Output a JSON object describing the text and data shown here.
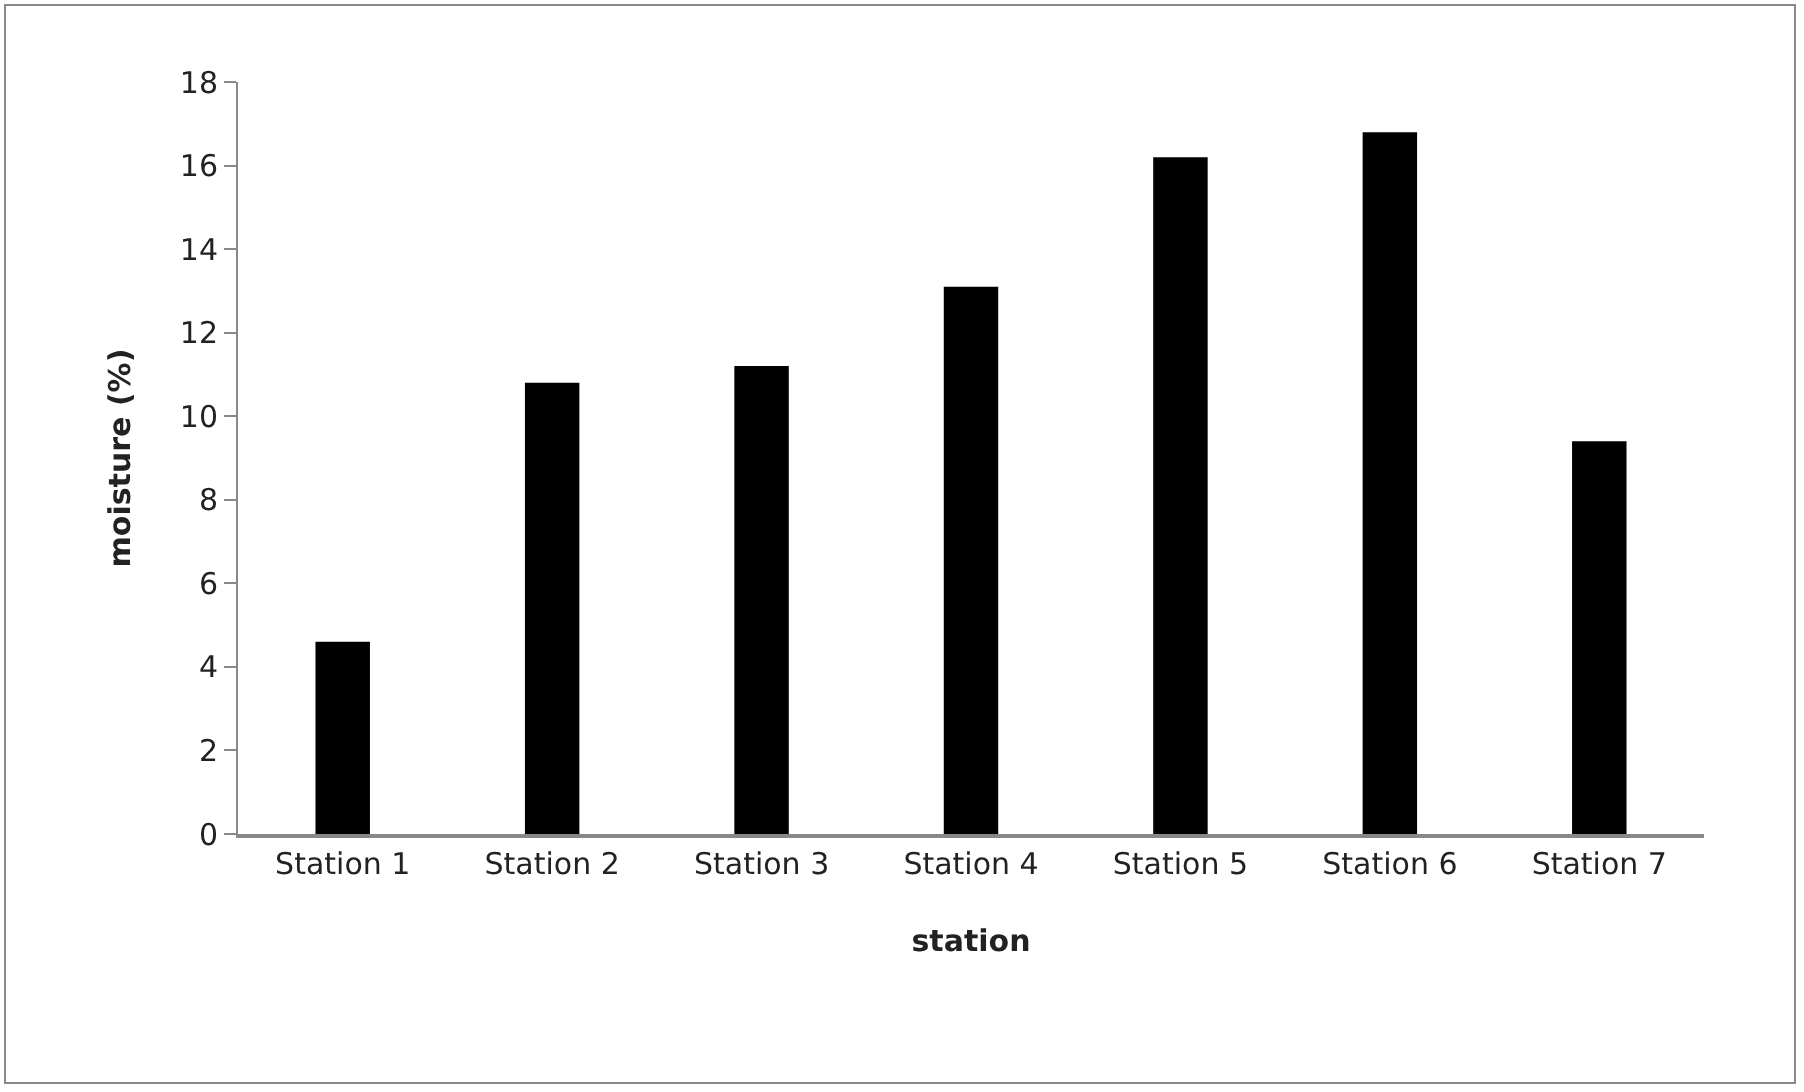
{
  "chart_data": {
    "type": "bar",
    "xlabel": "station",
    "ylabel": "moisture (%)",
    "categories": [
      "Station 1",
      "Station 2",
      "Station 3",
      "Station 4",
      "Station 5",
      "Station 6",
      "Station 7"
    ],
    "values": [
      4.6,
      10.8,
      11.2,
      13.1,
      16.2,
      16.8,
      9.4
    ],
    "color": "#000000",
    "ylim": [
      0,
      18
    ],
    "yticks": [
      0,
      2,
      4,
      6,
      8,
      10,
      12,
      14,
      16,
      18
    ],
    "grid": false,
    "legend": false
  }
}
